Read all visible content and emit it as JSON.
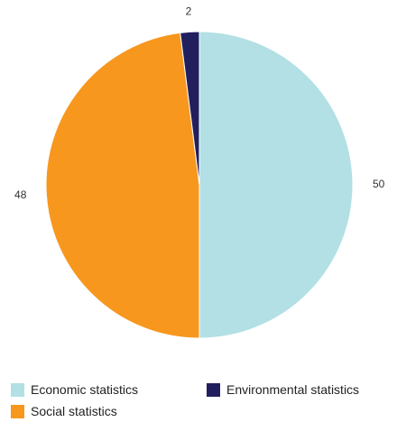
{
  "chart_data": {
    "type": "pie",
    "title": "",
    "start_angle_deg": 0,
    "direction": "clockwise",
    "slices": [
      {
        "label": "Economic statistics",
        "value": 50,
        "color": "#b2e0e4"
      },
      {
        "label": "Environmental statistics",
        "value": 2,
        "color": "#221f5e"
      },
      {
        "label": "Social statistics",
        "value": 48,
        "color": "#f7971e"
      }
    ],
    "slice_order": [
      "Economic statistics",
      "Social statistics",
      "Environmental statistics"
    ],
    "data_labels": [
      "50",
      "48",
      "2"
    ],
    "legend": {
      "placement": "bottom",
      "entries": [
        "Economic statistics",
        "Environmental statistics",
        "Social statistics"
      ]
    }
  }
}
